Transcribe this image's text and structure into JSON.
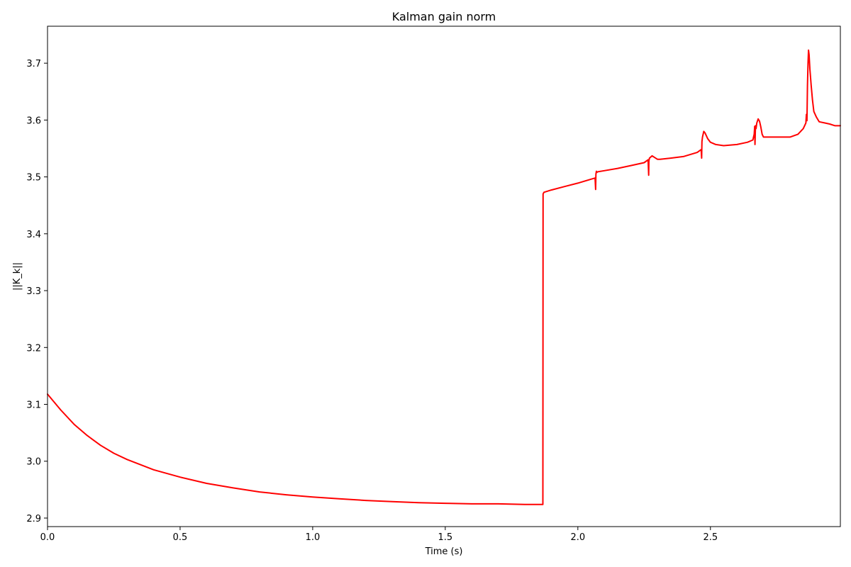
{
  "chart_data": {
    "type": "line",
    "title": "Kalman gain norm",
    "xlabel": "Time (s)",
    "ylabel": "||K_k||",
    "xlim": [
      0.0,
      2.99
    ],
    "ylim": [
      2.885,
      3.765
    ],
    "xticks": [
      0.0,
      0.5,
      1.0,
      1.5,
      2.0,
      2.5
    ],
    "xtick_labels": [
      "0.0",
      "0.5",
      "1.0",
      "1.5",
      "2.0",
      "2.5"
    ],
    "yticks": [
      2.9,
      3.0,
      3.1,
      3.2,
      3.3,
      3.4,
      3.5,
      3.6,
      3.7
    ],
    "ytick_labels": [
      "2.9",
      "3.0",
      "3.1",
      "3.2",
      "3.3",
      "3.4",
      "3.5",
      "3.6",
      "3.7"
    ],
    "grid": false,
    "legend": "none",
    "series": [
      {
        "color": "#ff0000",
        "x": [
          0.0,
          0.05,
          0.1,
          0.15,
          0.2,
          0.25,
          0.3,
          0.4,
          0.5,
          0.6,
          0.7,
          0.8,
          0.9,
          1.0,
          1.1,
          1.2,
          1.3,
          1.4,
          1.5,
          1.6,
          1.7,
          1.8,
          1.868,
          1.869,
          1.872,
          1.9,
          1.95,
          2.0,
          2.05,
          2.065,
          2.067,
          2.068,
          2.07,
          2.072,
          2.075,
          2.1,
          2.15,
          2.2,
          2.25,
          2.265,
          2.267,
          2.268,
          2.27,
          2.28,
          2.29,
          2.3,
          2.31,
          2.35,
          2.4,
          2.45,
          2.465,
          2.467,
          2.468,
          2.47,
          2.475,
          2.48,
          2.49,
          2.5,
          2.52,
          2.55,
          2.6,
          2.64,
          2.66,
          2.665,
          2.667,
          2.668,
          2.67,
          2.672,
          2.675,
          2.68,
          2.685,
          2.69,
          2.695,
          2.7,
          2.75,
          2.8,
          2.83,
          2.85,
          2.86,
          2.862,
          2.864,
          2.866,
          2.868,
          2.87,
          2.872,
          2.875,
          2.88,
          2.885,
          2.89,
          2.9,
          2.91,
          2.93,
          2.95,
          2.97,
          2.99
        ],
        "y": [
          3.118,
          3.09,
          3.065,
          3.045,
          3.028,
          3.014,
          3.003,
          2.985,
          2.972,
          2.961,
          2.953,
          2.946,
          2.941,
          2.937,
          2.934,
          2.931,
          2.929,
          2.927,
          2.926,
          2.925,
          2.925,
          2.924,
          2.924,
          3.47,
          3.473,
          3.477,
          3.483,
          3.489,
          3.496,
          3.498,
          3.478,
          3.505,
          3.51,
          3.508,
          3.509,
          3.511,
          3.515,
          3.52,
          3.525,
          3.53,
          3.503,
          3.528,
          3.533,
          3.537,
          3.534,
          3.531,
          3.531,
          3.533,
          3.536,
          3.543,
          3.548,
          3.533,
          3.562,
          3.57,
          3.58,
          3.577,
          3.567,
          3.561,
          3.557,
          3.555,
          3.557,
          3.561,
          3.565,
          3.575,
          3.589,
          3.557,
          3.59,
          3.585,
          3.595,
          3.602,
          3.598,
          3.588,
          3.575,
          3.57,
          3.57,
          3.57,
          3.575,
          3.585,
          3.595,
          3.61,
          3.599,
          3.66,
          3.7,
          3.723,
          3.715,
          3.69,
          3.66,
          3.635,
          3.615,
          3.605,
          3.597,
          3.595,
          3.593,
          3.59,
          3.59
        ]
      }
    ]
  }
}
